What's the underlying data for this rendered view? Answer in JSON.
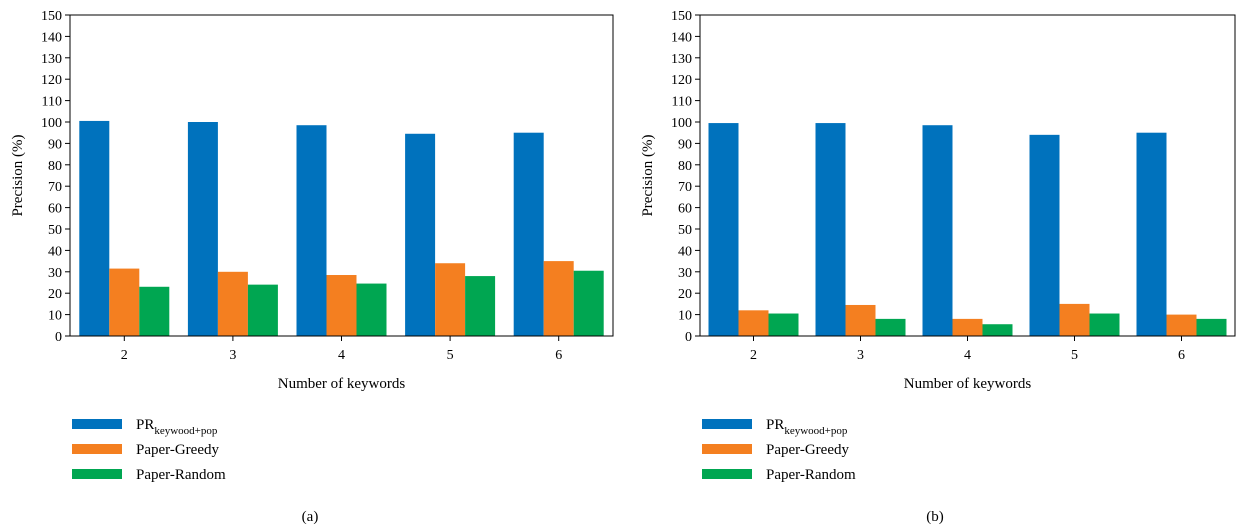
{
  "chart_data": [
    {
      "type": "bar",
      "caption": "(a)",
      "xlabel": "Number of keywords",
      "ylabel": "Precision (%)",
      "ylim": [
        0,
        150
      ],
      "yticks": [
        0,
        10,
        20,
        30,
        40,
        50,
        60,
        70,
        80,
        90,
        100,
        110,
        120,
        130,
        140,
        150
      ],
      "categories": [
        "2",
        "3",
        "4",
        "5",
        "6"
      ],
      "grid": false,
      "legend_position": "bottom-left",
      "series": [
        {
          "name": "PR",
          "name_sub": "keywood+pop",
          "color": "#0072BD",
          "values": [
            100.5,
            100,
            98.5,
            94.5,
            95
          ]
        },
        {
          "name": "Paper-Greedy",
          "color": "#F47F20",
          "values": [
            31.5,
            30,
            28.5,
            34,
            35
          ]
        },
        {
          "name": "Paper-Random",
          "color": "#00A651",
          "values": [
            23,
            24,
            24.5,
            28,
            30.5
          ]
        }
      ]
    },
    {
      "type": "bar",
      "caption": "(b)",
      "xlabel": "Number of keywords",
      "ylabel": "Precision (%)",
      "ylim": [
        0,
        150
      ],
      "yticks": [
        0,
        10,
        20,
        30,
        40,
        50,
        60,
        70,
        80,
        90,
        100,
        110,
        120,
        130,
        140,
        150
      ],
      "categories": [
        "2",
        "3",
        "4",
        "5",
        "6"
      ],
      "grid": false,
      "legend_position": "bottom-left",
      "series": [
        {
          "name": "PR",
          "name_sub": "keywood+pop",
          "color": "#0072BD",
          "values": [
            99.5,
            99.5,
            98.5,
            94,
            95
          ]
        },
        {
          "name": "Paper-Greedy",
          "color": "#F47F20",
          "values": [
            12,
            14.5,
            8,
            15,
            10
          ]
        },
        {
          "name": "Paper-Random",
          "color": "#00A651",
          "values": [
            10.5,
            8,
            5.5,
            10.5,
            8
          ]
        }
      ]
    }
  ]
}
